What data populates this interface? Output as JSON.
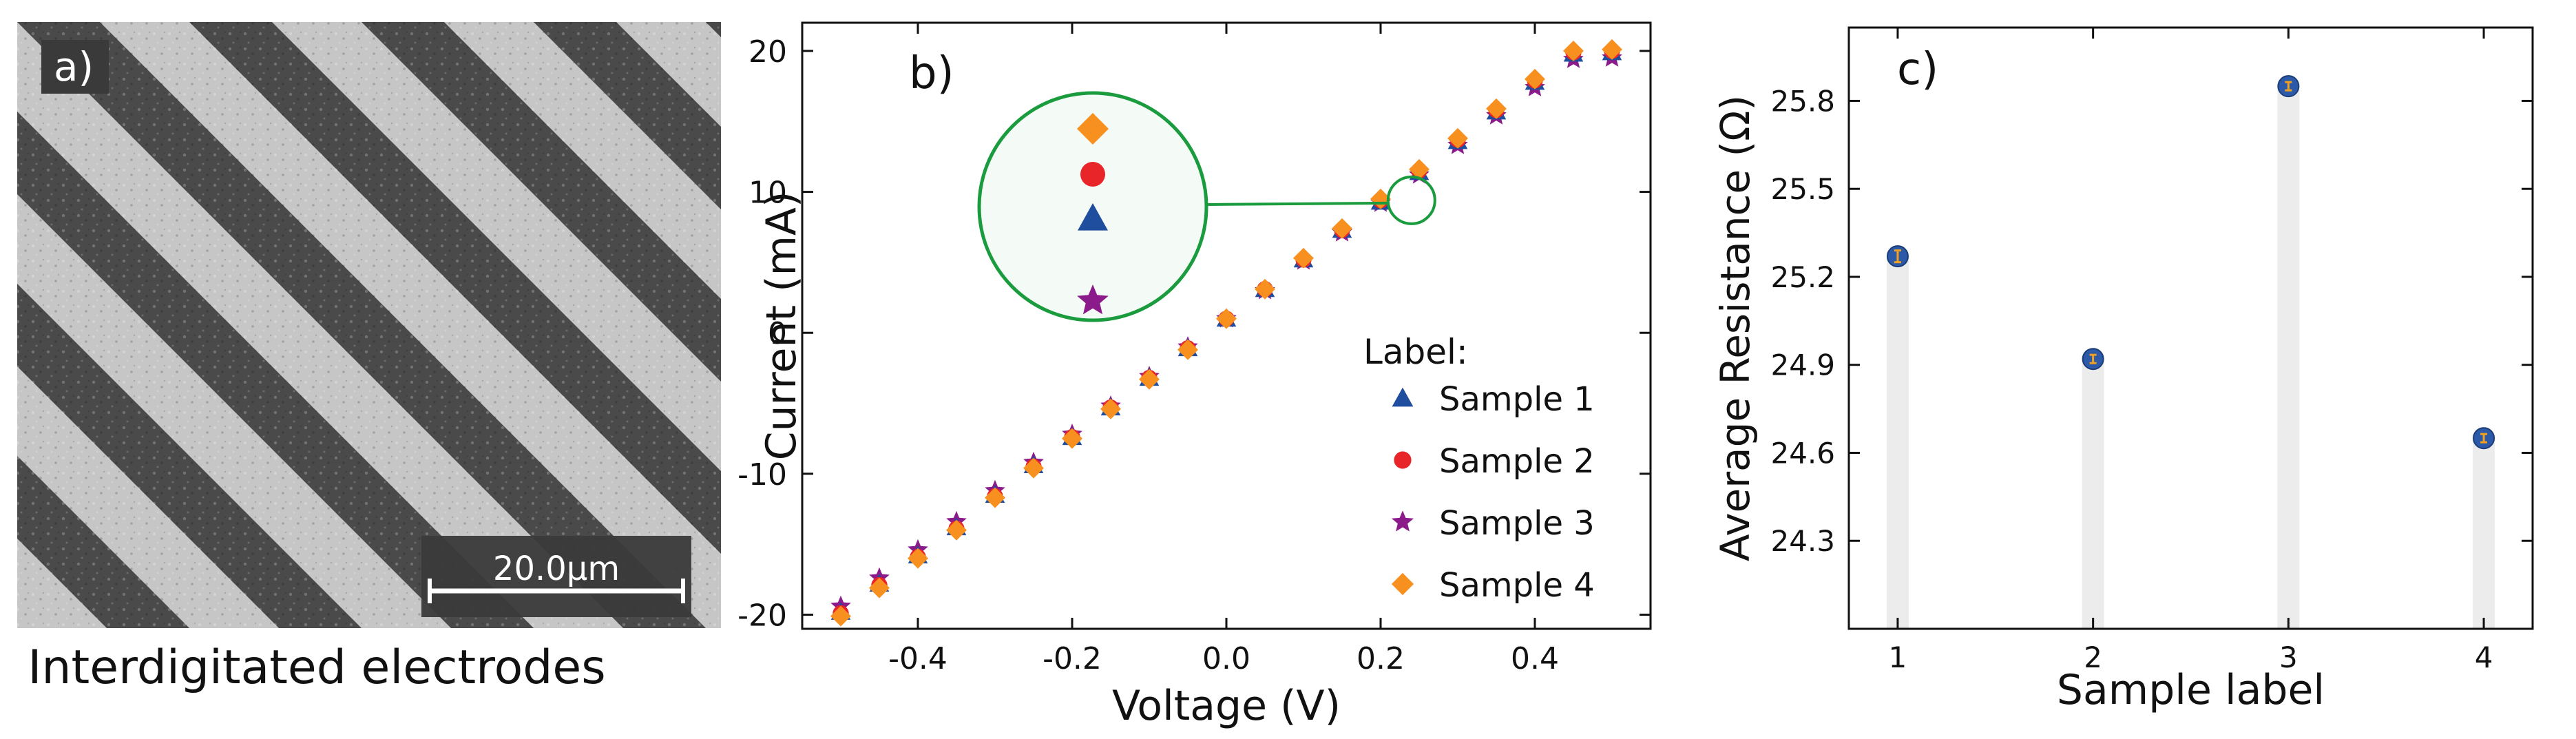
{
  "panel_a": {
    "label": "a)",
    "scale_bar_text": "20.0μm",
    "caption": "Interdigitated electrodes"
  },
  "chart_data": [
    {
      "panel": "b)",
      "type": "scatter",
      "xlabel": "Voltage (V)",
      "ylabel": "Current (mA)",
      "xlim": [
        -0.55,
        0.55
      ],
      "ylim": [
        -21,
        22
      ],
      "xticks": [
        -0.4,
        -0.2,
        0.0,
        0.2,
        0.4
      ],
      "xtick_labels": [
        "-0.4",
        "-0.2",
        "0.0",
        "0.2",
        "0.4"
      ],
      "yticks": [
        -20,
        -10,
        0,
        10,
        20
      ],
      "ytick_labels": [
        "-20",
        "-10",
        "0",
        "10",
        "20"
      ],
      "legend_title": "Label:",
      "legend_position": "bottom-right",
      "x": [
        -0.5,
        -0.45,
        -0.4,
        -0.35,
        -0.3,
        -0.25,
        -0.2,
        -0.15,
        -0.1,
        -0.05,
        0.0,
        0.05,
        0.1,
        0.15,
        0.2,
        0.25,
        0.3,
        0.35,
        0.4,
        0.45,
        0.5
      ],
      "series": [
        {
          "name": "Sample 1",
          "marker": "triangle",
          "color": "#1f4e9e",
          "values": [
            -19.8,
            -17.8,
            -15.8,
            -13.8,
            -11.5,
            -9.4,
            -7.4,
            -5.3,
            -3.2,
            -1.1,
            1.0,
            3.1,
            5.2,
            7.3,
            9.3,
            11.4,
            13.6,
            15.7,
            17.8,
            19.8,
            19.9
          ]
        },
        {
          "name": "Sample 2",
          "marker": "circle",
          "color": "#e8262a",
          "values": [
            -19.9,
            -17.9,
            -15.9,
            -13.9,
            -11.6,
            -9.5,
            -7.4,
            -5.3,
            -3.2,
            -1.1,
            1.0,
            3.1,
            5.2,
            7.3,
            9.4,
            11.5,
            13.7,
            15.8,
            17.9,
            19.9,
            20.0
          ]
        },
        {
          "name": "Sample 3",
          "marker": "star",
          "color": "#8b1a8b",
          "values": [
            -19.4,
            -17.4,
            -15.4,
            -13.4,
            -11.2,
            -9.2,
            -7.2,
            -5.2,
            -3.1,
            -1.0,
            1.0,
            3.0,
            5.1,
            7.1,
            9.2,
            11.2,
            13.3,
            15.4,
            17.4,
            19.4,
            19.5
          ]
        },
        {
          "name": "Sample 4",
          "marker": "diamond",
          "color": "#f7901e",
          "values": [
            -20.1,
            -18.1,
            -16.0,
            -14.0,
            -11.7,
            -9.6,
            -7.5,
            -5.4,
            -3.3,
            -1.2,
            1.0,
            3.1,
            5.3,
            7.4,
            9.5,
            11.6,
            13.8,
            15.9,
            18.0,
            20.0,
            20.1
          ]
        }
      ],
      "inset": {
        "zoom_x": 0.24,
        "zoom_y": 9.4,
        "color": "#1a9c3e"
      }
    },
    {
      "panel": "c)",
      "type": "scatter",
      "xlabel": "Sample label",
      "ylabel": "Average Resistance (Ω)",
      "xlim": [
        0.75,
        4.25
      ],
      "ylim": [
        24.0,
        26.05
      ],
      "xticks": [
        1,
        2,
        3,
        4
      ],
      "xtick_labels": [
        "1",
        "2",
        "3",
        "4"
      ],
      "yticks": [
        24.3,
        24.6,
        24.9,
        25.2,
        25.5,
        25.8
      ],
      "ytick_labels": [
        "24.3",
        "24.6",
        "24.9",
        "25.2",
        "25.5",
        "25.8"
      ],
      "categories": [
        1,
        2,
        3,
        4
      ],
      "values": [
        25.27,
        24.92,
        25.85,
        24.65
      ],
      "errors": [
        0.02,
        0.01,
        0.01,
        0.01
      ],
      "marker_color": "#2d5aa8",
      "error_color": "#f0a020",
      "drop_bar_color": "#ececec"
    }
  ],
  "colors": {
    "frame": "#111111",
    "micrograph_dark": "#4a4a4a",
    "micrograph_light": "#c8c8c8",
    "scalebar_bg": "#3a3a3a"
  }
}
